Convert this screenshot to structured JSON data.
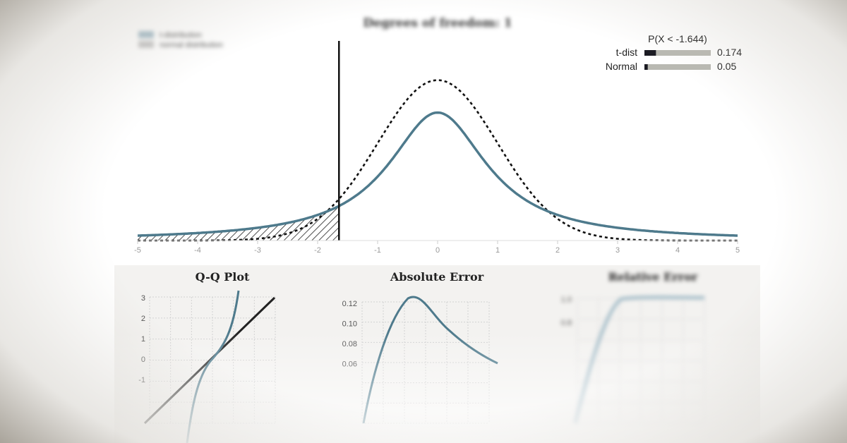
{
  "main_chart": {
    "title": "Degrees of freedom: 1",
    "legend": [
      "t-distribution",
      "normal distribution"
    ],
    "x_ticks": [
      "-5",
      "-4",
      "-3",
      "-2",
      "-1",
      "0",
      "1",
      "2",
      "3",
      "4",
      "5"
    ],
    "probability_box": {
      "title": "P(X < -1.644)",
      "rows": [
        {
          "label": "t-dist",
          "value_text": "0.174",
          "value": 0.174
        },
        {
          "label": "Normal",
          "value_text": "0.05",
          "value": 0.05
        }
      ]
    }
  },
  "panels": {
    "qq": {
      "title": "Q-Q Plot",
      "y_ticks": [
        "3",
        "2",
        "1",
        "0",
        "-1"
      ]
    },
    "abs": {
      "title": "Absolute Error",
      "y_ticks": [
        "0.12",
        "0.10",
        "0.08",
        "0.06"
      ]
    },
    "rel": {
      "title": "Relative Error",
      "y_ticks": [
        "1.0",
        "0.8"
      ]
    }
  },
  "colors": {
    "t_curve": "#4e7a8c",
    "normal_curve": "#111111",
    "grid": "#cfcfcf",
    "bar_track": "#b9b9b2",
    "bar_fill": "#1a1a22"
  },
  "chart_data": [
    {
      "type": "line",
      "title": "Degrees of freedom: 1",
      "xlim": [
        -5,
        5
      ],
      "series": [
        {
          "name": "t-distribution",
          "distribution": "t",
          "df": 1
        },
        {
          "name": "normal distribution",
          "distribution": "normal",
          "mean": 0,
          "sd": 1
        }
      ],
      "cutoff_x": -1.644,
      "shaded_region": "x < -1.644 under t-distribution",
      "probabilities": {
        "t-dist": 0.174,
        "Normal": 0.05
      }
    },
    {
      "type": "line",
      "title": "Q-Q Plot",
      "ylim": [
        -1,
        3
      ]
    },
    {
      "type": "line",
      "title": "Absolute Error",
      "y_ticks": [
        0.12,
        0.1,
        0.08,
        0.06
      ]
    },
    {
      "type": "line",
      "title": "Relative Error",
      "y_ticks": [
        1.0,
        0.8
      ]
    }
  ]
}
